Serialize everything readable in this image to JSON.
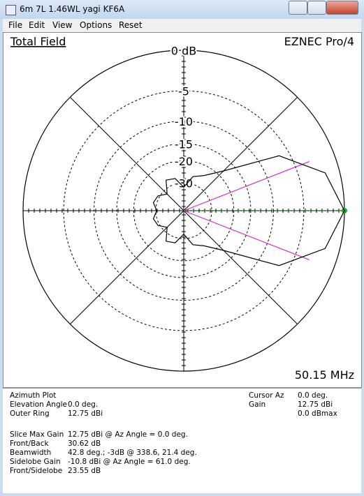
{
  "window_title": "6m 7L 1.46WL yagi KF6A",
  "menu": [
    "File",
    "Edit",
    "View",
    "Options",
    "Reset"
  ],
  "plot": {
    "type": "polar",
    "title": "Total Field",
    "program": "EZNEC Pro/4",
    "frequency": "50.15 MHz",
    "rings": [
      {
        "value": 0,
        "label": "0 dB"
      },
      -5,
      -10,
      -15,
      -20,
      -30
    ],
    "pattern": {
      "angles": [
        0,
        15,
        30,
        45,
        60,
        75,
        90,
        105,
        120,
        135,
        150,
        165,
        180,
        195,
        210,
        225,
        240,
        255,
        270,
        285,
        300,
        315,
        330,
        345
      ],
      "values": [
        0,
        -1.6,
        -6.5,
        -18,
        -23.6,
        -26,
        -33,
        -27,
        -26,
        -33,
        -29,
        -28,
        -30.6,
        -28,
        -29,
        -33,
        -26,
        -27,
        -33,
        -26,
        -23.6,
        -18,
        -6.5,
        -1.6
      ],
      "color": "#000000"
    }
  },
  "info": {
    "left": [
      {
        "label": "Azimuth Plot"
      },
      {
        "label": "Elevation Angle",
        "value": "0.0 deg."
      },
      {
        "label": "Outer Ring",
        "value": "12.75 dBi"
      },
      {
        "label": "Slice Max Gain",
        "value": "12.75 dBi @ Az Angle = 0.0 deg."
      },
      {
        "label": "Front/Back",
        "value": "30.62 dB"
      },
      {
        "label": "Beamwidth",
        "value": "42.8 deg.; -3dB @ 338.6, 21.4 deg."
      },
      {
        "label": "Sidelobe Gain",
        "value": "-10.8 dBi @ Az Angle = 61.0 deg."
      },
      {
        "label": "Front/Sidelobe",
        "value": "23.55 dB"
      }
    ],
    "right": [
      {
        "label": "Cursor Az",
        "value": "0.0 deg."
      },
      {
        "label": "Gain",
        "value": "12.75 dBi"
      },
      {
        "value": "0.0 dBmax"
      }
    ]
  }
}
